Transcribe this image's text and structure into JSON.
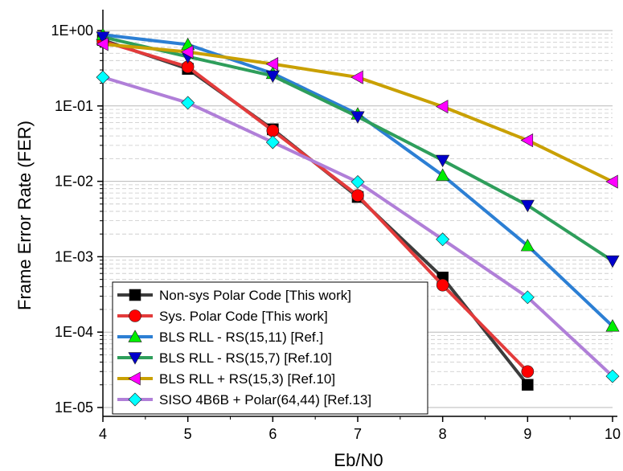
{
  "chart_data": {
    "type": "line",
    "xlabel": "Eb/N0",
    "ylabel": "Frame Error Rate (FER)",
    "xlim": [
      4,
      10
    ],
    "ylim": [
      1e-05,
      1
    ],
    "yscale": "log",
    "x_ticks": [
      4,
      5,
      6,
      7,
      8,
      9,
      10
    ],
    "x_tick_labels": [
      "4",
      "5",
      "6",
      "7",
      "8",
      "9",
      "10"
    ],
    "y_ticks": [
      1,
      0.1,
      0.01,
      0.001,
      0.0001,
      1e-05
    ],
    "y_tick_labels": [
      "1E+00",
      "1E-01",
      "1E-02",
      "1E-03",
      "1E-04",
      "1E-05"
    ],
    "grid": true,
    "legend_position": "bottom-left",
    "series": [
      {
        "name": "Non-sys Polar Code [This work]",
        "color": "#3c3c3c",
        "marker": "square",
        "marker_color": "#000000",
        "x": [
          4,
          5,
          6,
          7,
          8,
          9
        ],
        "y": [
          0.75,
          0.31,
          0.049,
          0.0062,
          0.00053,
          2e-05
        ]
      },
      {
        "name": "Sys. Polar Code [This work]",
        "color": "#e33b3b",
        "marker": "circle",
        "marker_color": "#ff0000",
        "x": [
          4,
          5,
          6,
          7,
          8,
          9
        ],
        "y": [
          0.72,
          0.33,
          0.047,
          0.0065,
          0.00042,
          3e-05
        ]
      },
      {
        "name": "BLS RLL - RS(15,11) [Ref.]",
        "color": "#2c7fd4",
        "marker": "triangle-up",
        "marker_color": "#00ee00",
        "x": [
          4,
          5,
          6,
          7,
          8,
          9,
          10
        ],
        "y": [
          0.88,
          0.65,
          0.27,
          0.078,
          0.012,
          0.0014,
          0.00012
        ]
      },
      {
        "name": "BLS RLL - RS(15,7) [Ref.10]",
        "color": "#2e9e5b",
        "marker": "triangle-down",
        "marker_color": "#0000cc",
        "x": [
          4,
          5,
          6,
          7,
          8,
          9,
          10
        ],
        "y": [
          0.82,
          0.45,
          0.25,
          0.072,
          0.019,
          0.0048,
          0.00088
        ]
      },
      {
        "name": "BLS RLL + RS(15,3) [Ref.10]",
        "color": "#c9a000",
        "marker": "triangle-left",
        "marker_color": "#ff00ff",
        "x": [
          4,
          5,
          6,
          7,
          8,
          9,
          10
        ],
        "y": [
          0.66,
          0.52,
          0.36,
          0.24,
          0.098,
          0.035,
          0.0099
        ]
      },
      {
        "name": "SISO 4B6B + Polar(64,44) [Ref.13]",
        "color": "#b07fd8",
        "marker": "diamond",
        "marker_color": "#00ffff",
        "x": [
          4,
          5,
          6,
          7,
          8,
          9,
          10
        ],
        "y": [
          0.24,
          0.11,
          0.033,
          0.0098,
          0.0017,
          0.00029,
          2.6e-05
        ]
      }
    ]
  }
}
